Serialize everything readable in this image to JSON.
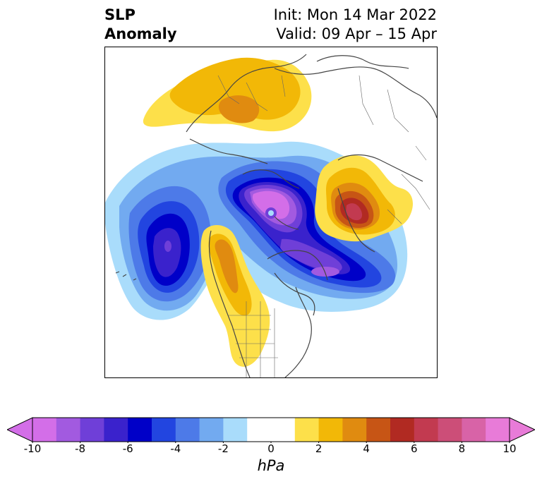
{
  "header": {
    "variable": "SLP",
    "subtitle": "Anomaly",
    "init": "Init: Mon 14 Mar 2022",
    "valid": "Valid: 09 Apr – 15 Apr"
  },
  "colorbar": {
    "units": "hPa",
    "min": -10,
    "max": 10,
    "step": 1,
    "extend": "both",
    "tick_labels": [
      "-10",
      "-8",
      "-6",
      "-4",
      "-2",
      "0",
      "2",
      "4",
      "6",
      "8",
      "10"
    ],
    "colors": [
      "#d36ee8",
      "#a25ae0",
      "#6f3fd8",
      "#3a22cc",
      "#0000c8",
      "#2245e0",
      "#4d7ae8",
      "#72aaf0",
      "#a9dcfb",
      "#ffffff",
      "#ffffff",
      "#fde04a",
      "#f2b807",
      "#e08b10",
      "#c75515",
      "#b12a22",
      "#c23a50",
      "#cc4e78",
      "#d863a7",
      "#e87bd8"
    ],
    "under_color": "#d36ee8",
    "over_color": "#e87bd8"
  },
  "map": {
    "projection": "polar stereographic (north)",
    "features": [
      "coastlines",
      "country borders",
      "US state borders"
    ]
  }
}
